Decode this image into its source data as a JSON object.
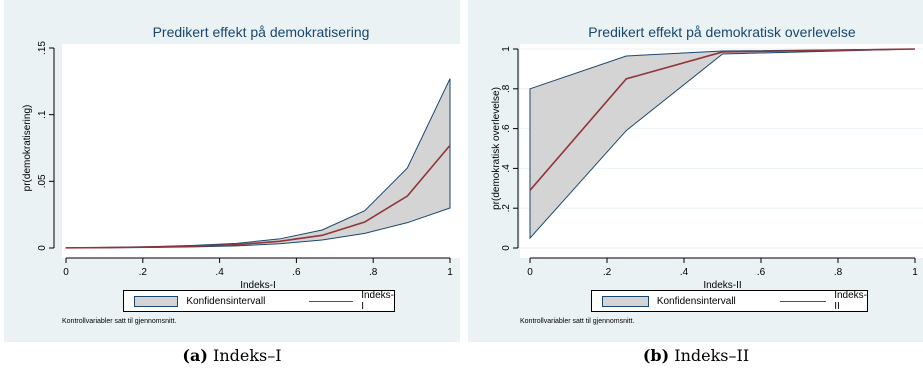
{
  "chart_data": [
    {
      "type": "area",
      "title": "Predikert effekt på demokratisering",
      "xlabel": "Indeks-I",
      "ylabel": "pr(demokratisering)",
      "xlim": [
        0,
        1
      ],
      "ylim": [
        0,
        0.15
      ],
      "xticks": [
        "0",
        ".2",
        ".4",
        ".6",
        ".8",
        "1"
      ],
      "yticks": [
        "0",
        ".05",
        ".1",
        ".15"
      ],
      "x": [
        0,
        0.111,
        0.222,
        0.333,
        0.444,
        0.556,
        0.667,
        0.778,
        0.889,
        1.0
      ],
      "series": [
        {
          "name": "Konfidensintervall",
          "kind": "band",
          "lower": [
            0.0,
            0.0002,
            0.0004,
            0.0008,
            0.0016,
            0.0032,
            0.006,
            0.011,
            0.019,
            0.03
          ],
          "upper": [
            0.0002,
            0.0005,
            0.001,
            0.002,
            0.0035,
            0.0068,
            0.0135,
            0.028,
            0.06,
            0.127
          ]
        },
        {
          "name": "Indeks-I",
          "kind": "line",
          "values": [
            0.0001,
            0.0003,
            0.0007,
            0.0014,
            0.0025,
            0.005,
            0.0095,
            0.0195,
            0.039,
            0.077
          ]
        }
      ],
      "legend": [
        "Konfidensintervall",
        "Indeks-I"
      ],
      "legend_position": "bottom",
      "note": "Kontrollvariabler satt til gjennomsnitt.",
      "caption_label": "(a)",
      "caption_text": "Indeks–I",
      "grid": false
    },
    {
      "type": "area",
      "title": "Predikert effekt på demokratisk overlevelse",
      "xlabel": "Indeks-II",
      "ylabel": "pr(demokratisk overlevelse)",
      "xlim": [
        0,
        1
      ],
      "ylim": [
        0,
        1
      ],
      "xticks": [
        "0",
        ".2",
        ".4",
        ".6",
        ".8",
        "1"
      ],
      "yticks": [
        "0",
        ".2",
        ".4",
        ".6",
        ".8",
        "1"
      ],
      "x": [
        0,
        0.25,
        0.5,
        1.0
      ],
      "series": [
        {
          "name": "Konfidensintervall",
          "kind": "band",
          "lower": [
            0.05,
            0.59,
            0.975,
            1.0
          ],
          "upper": [
            0.8,
            0.965,
            0.99,
            1.0
          ]
        },
        {
          "name": "Indeks-II",
          "kind": "line",
          "values": [
            0.29,
            0.85,
            0.985,
            1.0
          ]
        }
      ],
      "legend": [
        "Konfidensintervall",
        "Indeks-II"
      ],
      "legend_position": "bottom",
      "note": "Kontrollvariabler satt til gjennomsnitt.",
      "caption_label": "(b)",
      "caption_text": "Indeks–II",
      "grid": true
    }
  ],
  "colors": {
    "band_fill": "#d4d4d4",
    "band_edge": "#1a476f",
    "line": "#90353b",
    "title": "#1a476f",
    "grid": "#eaf2f3",
    "outer_bg": "#eaf2f3"
  }
}
